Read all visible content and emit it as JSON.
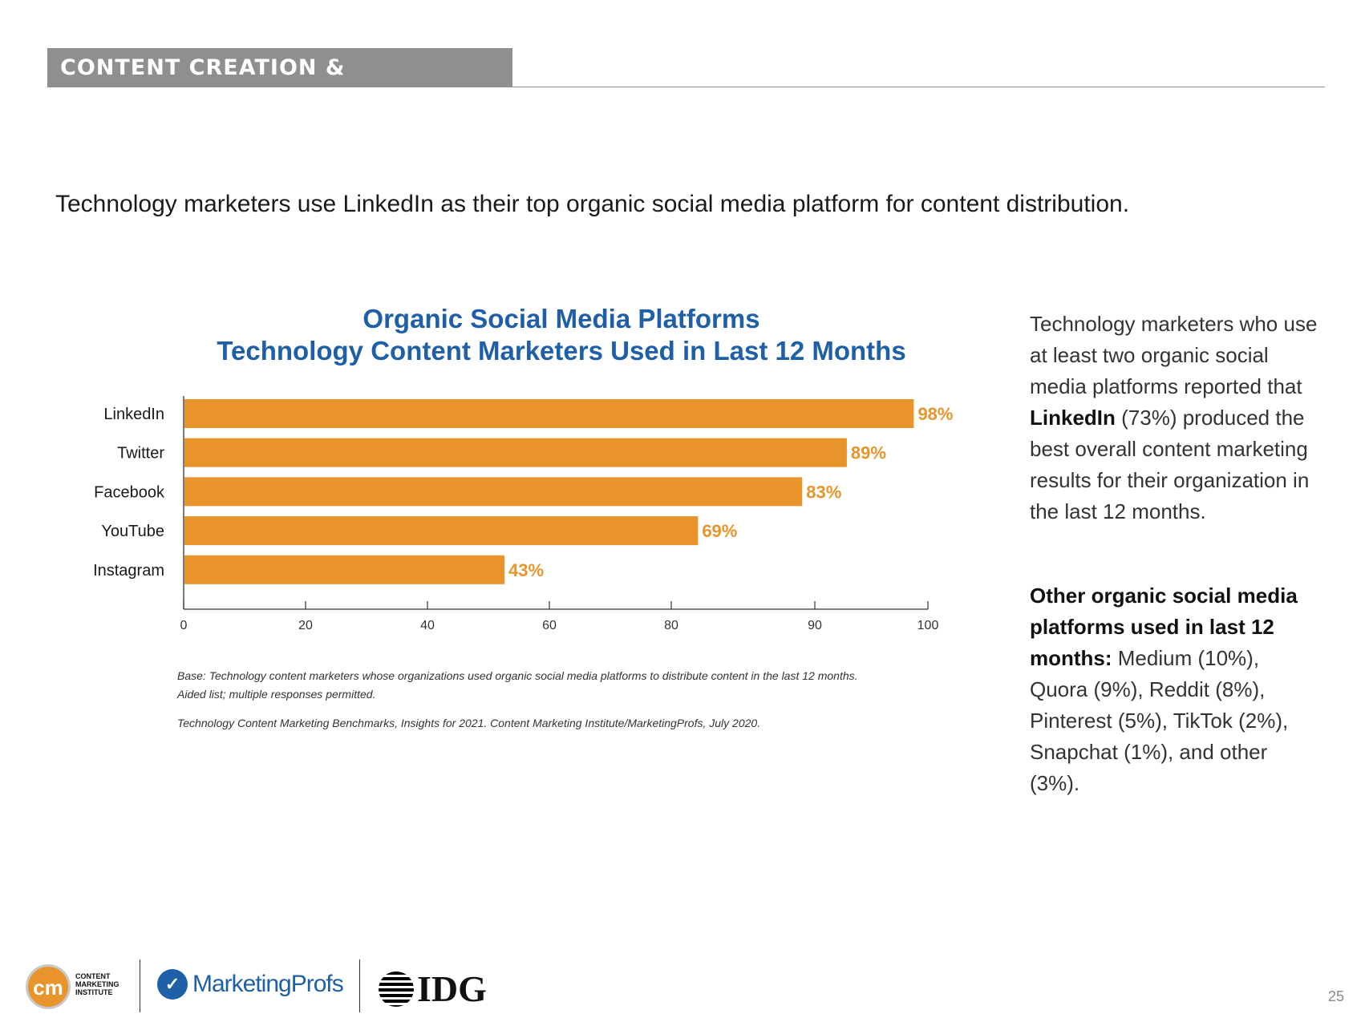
{
  "header": {
    "section_label": "CONTENT CREATION & DISTRIBUTION",
    "headline": "Technology marketers use LinkedIn as their top organic social media platform for content distribution."
  },
  "chart_data": {
    "type": "bar",
    "orientation": "horizontal",
    "title_line1": "Organic Social Media Platforms",
    "title_line2": "Technology Content Marketers Used in Last 12 Months",
    "categories": [
      "LinkedIn",
      "Twitter",
      "Facebook",
      "YouTube",
      "Instagram"
    ],
    "values": [
      98,
      89,
      83,
      69,
      43
    ],
    "value_labels": [
      "98%",
      "89%",
      "83%",
      "69%",
      "43%"
    ],
    "x_ticks": [
      "0",
      "20",
      "40",
      "60",
      "80",
      "90",
      "100"
    ],
    "xlim": [
      0,
      100
    ],
    "bar_color": "#e8942b",
    "title_color": "#1f5fa7",
    "grid": false,
    "legend": "none"
  },
  "footnotes": {
    "base": "Base: Technology content marketers whose organizations used organic social media platforms to distribute content in the last 12 months.",
    "aided": "Aided list; multiple responses permitted.",
    "source": "Technology Content Marketing Benchmarks, Insights for 2021. Content Marketing Institute/MarketingProfs, July 2020."
  },
  "sidebar": {
    "p1_before": "Technology marketers who use at least two organic social media platforms reported that ",
    "p1_bold": "LinkedIn",
    "p1_after": " (73%) produced the best overall content marketing results for their organization in the last 12 months.",
    "p2_bold": "Other organic social media platforms used in last 12 months:",
    "p2_after": " Medium (10%), Quora (9%), Reddit (8%), Pinterest (5%), TikTok (2%), Snapchat (1%), and other (3%)."
  },
  "footer": {
    "cmi_mark": "cm",
    "cmi_text": "CONTENT MARKETING INSTITUTE",
    "marketingprofs": "MarketingProfs",
    "idg": "IDG",
    "page_number": "25"
  }
}
